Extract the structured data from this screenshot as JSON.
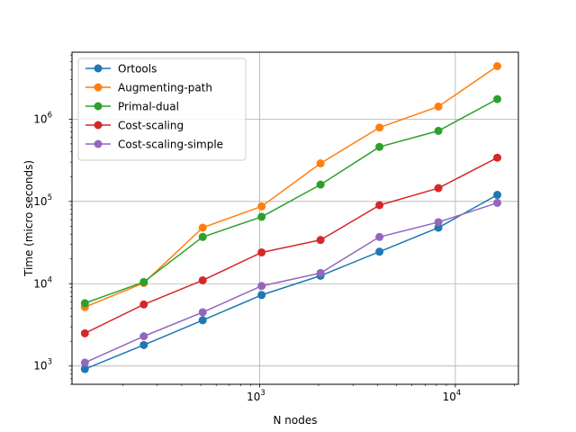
{
  "chart_data": {
    "type": "line",
    "xscale": "log",
    "yscale": "log",
    "xlabel": "N nodes",
    "ylabel": "Time (micro seconds)",
    "xlim": [
      110,
      21000
    ],
    "ylim": [
      600,
      6500000
    ],
    "grid": true,
    "legend_position": "top-left",
    "x": [
      128,
      256,
      512,
      1024,
      2048,
      4096,
      8192,
      16384
    ],
    "x_tick_labels": [
      {
        "base": "10",
        "exp": "3",
        "value": 1000
      },
      {
        "base": "10",
        "exp": "4",
        "value": 10000
      }
    ],
    "y_tick_labels": [
      {
        "base": "10",
        "exp": "3",
        "value": 1000
      },
      {
        "base": "10",
        "exp": "4",
        "value": 10000
      },
      {
        "base": "10",
        "exp": "5",
        "value": 100000
      },
      {
        "base": "10",
        "exp": "6",
        "value": 1000000
      }
    ],
    "series": [
      {
        "name": "Ortools",
        "color": "#1f77b4",
        "values": [
          920,
          1800,
          3600,
          7300,
          12500,
          24500,
          48000,
          120000
        ]
      },
      {
        "name": "Augmenting-path",
        "color": "#ff7f0e",
        "values": [
          5200,
          10200,
          48000,
          87000,
          290000,
          790000,
          1420000,
          4400000
        ]
      },
      {
        "name": "Primal-dual",
        "color": "#2ca02c",
        "values": [
          5800,
          10500,
          37000,
          65000,
          160000,
          460000,
          720000,
          1750000
        ]
      },
      {
        "name": "Cost-scaling",
        "color": "#d62728",
        "values": [
          2500,
          5600,
          11000,
          24000,
          34000,
          90000,
          145000,
          340000
        ]
      },
      {
        "name": "Cost-scaling-simple",
        "color": "#9467bd",
        "values": [
          1100,
          2300,
          4500,
          9400,
          13500,
          37000,
          56000,
          96000
        ]
      }
    ]
  }
}
